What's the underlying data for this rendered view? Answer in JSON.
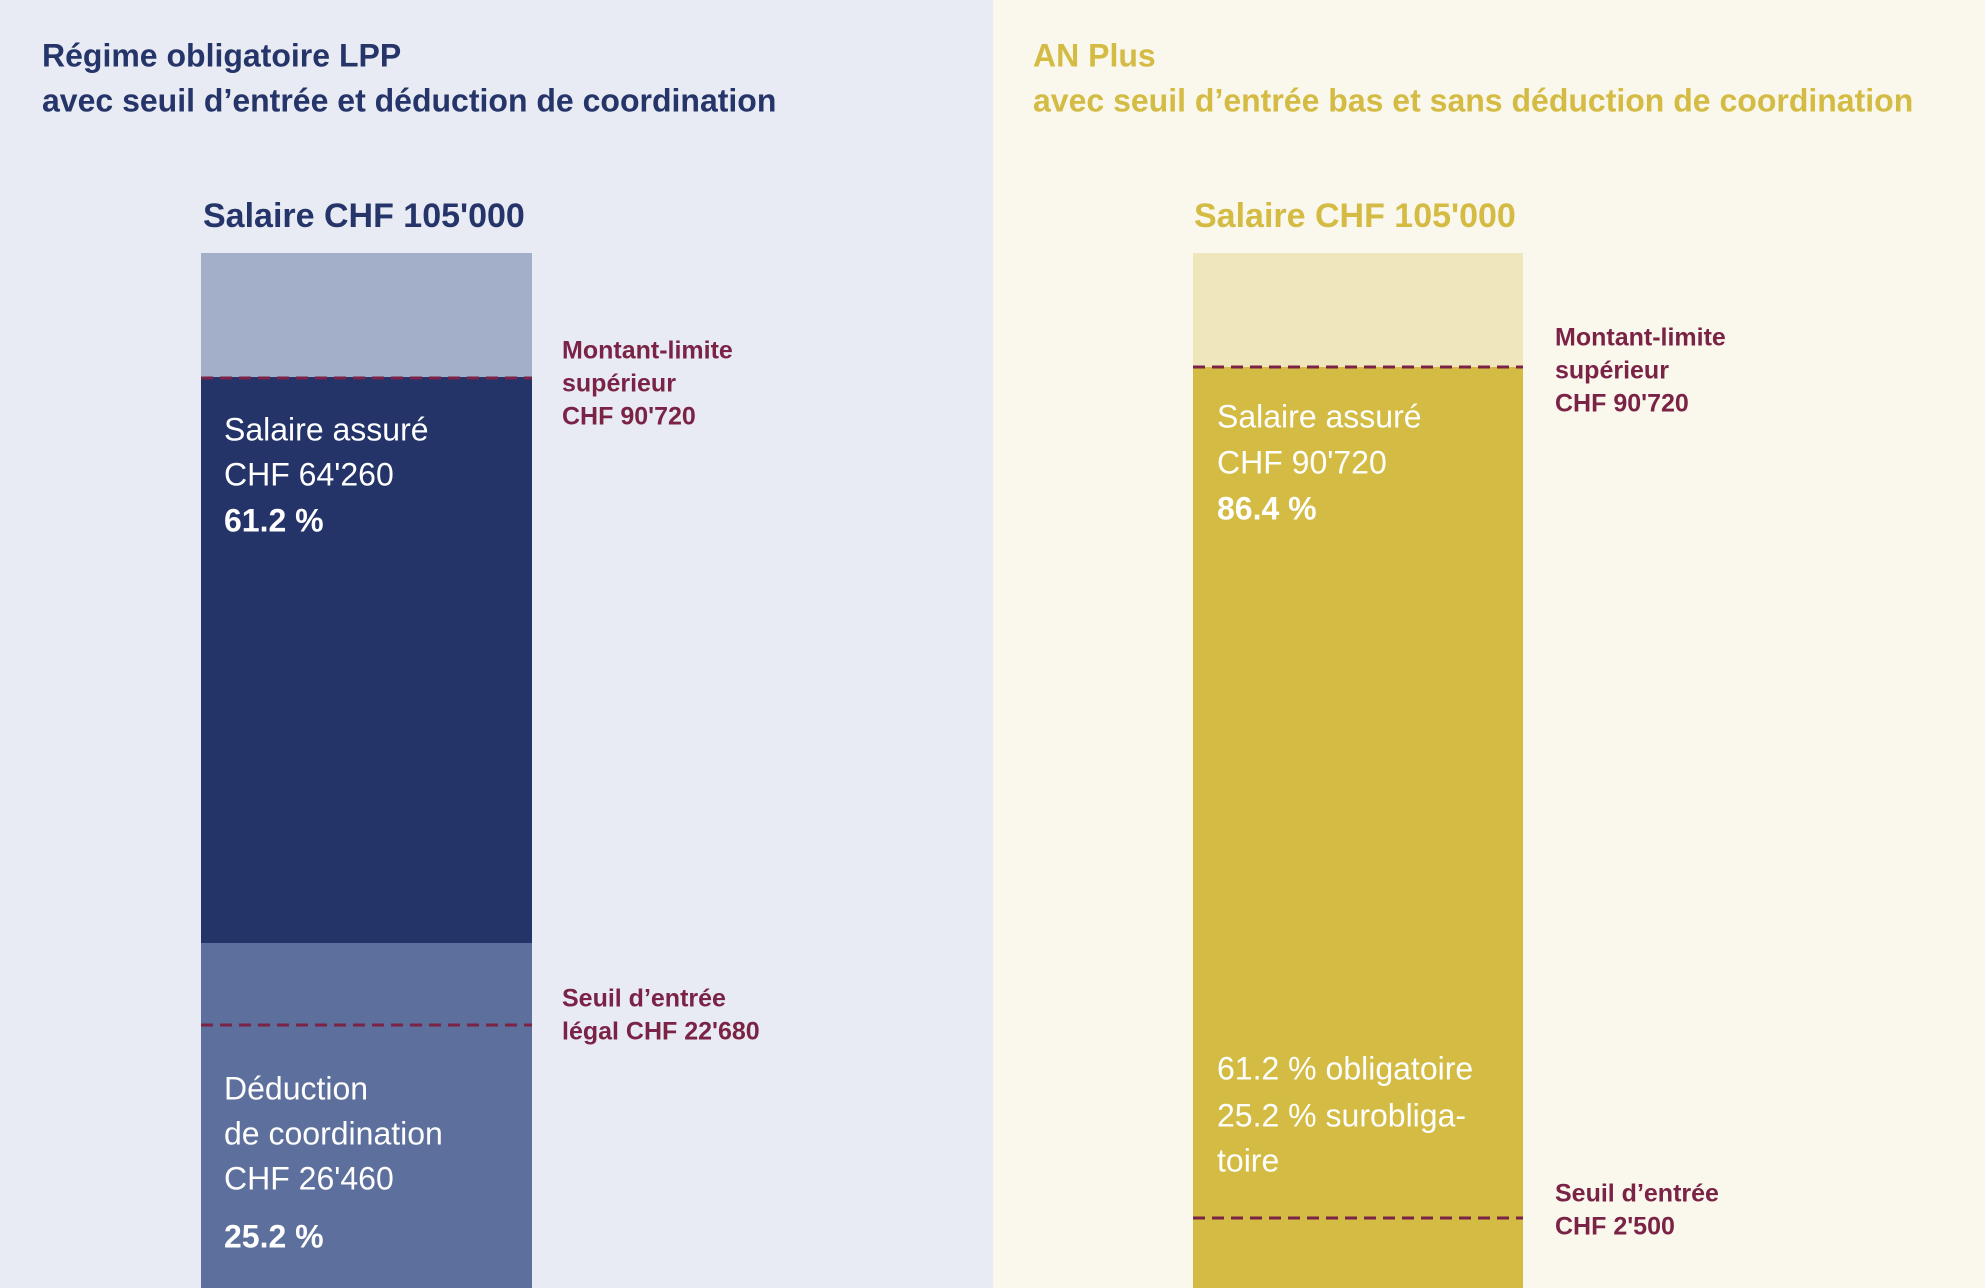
{
  "left": {
    "title": [
      "Régime obligatoire LPP",
      "avec seuil d’entrée et déduction de coordination"
    ],
    "salary": "Salaire CHF 105'000",
    "upper_limit": [
      "Montant-limite",
      "supérieur",
      "CHF 90'720"
    ],
    "insured": [
      "Salaire assuré",
      "CHF 64'260",
      "61.2 %"
    ],
    "threshold": [
      "Seuil d’entrée",
      "légal CHF 22'680"
    ],
    "deduction": [
      "Déduction",
      "de coordination",
      "CHF 26'460",
      "25.2 %"
    ]
  },
  "right": {
    "title": [
      "AN Plus",
      "avec seuil d’entrée bas et sans déduction de coordination"
    ],
    "salary": "Salaire CHF 105'000",
    "upper_limit": [
      "Montant-limite",
      "supérieur",
      "CHF 90'720"
    ],
    "insured": [
      "Salaire assuré",
      "CHF 90'720",
      "86.4 %"
    ],
    "split": [
      "61.2 % obligatoire",
      "25.2 % surobliga-",
      "toire"
    ],
    "threshold": [
      "Seuil d’entrée",
      "CHF 2'500"
    ]
  }
}
